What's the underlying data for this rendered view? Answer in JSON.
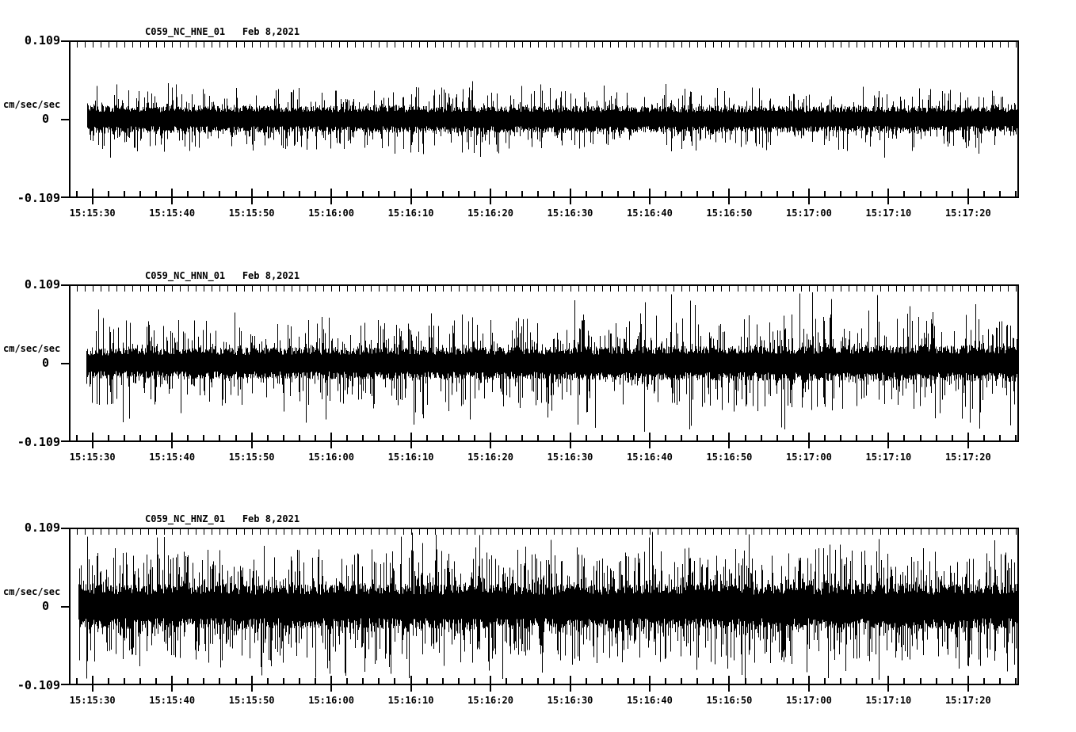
{
  "page": {
    "background": "#ffffff",
    "foreground": "#000000"
  },
  "chart_data": {
    "type": "line",
    "subtype": "seismogram min/max envelope traces, 3 stacked panels",
    "grid": false,
    "legend": false,
    "trace_color": "#000000",
    "x_axis": {
      "approx_start_time": "15:15:27",
      "approx_end_time": "15:17:26",
      "major_tick_interval_sec": 10,
      "minor_tick_interval_sec": 2,
      "top_edge_tick_interval_sec": 1,
      "major_tick_labels": [
        "15:15:30",
        "15:15:40",
        "15:15:50",
        "15:16:00",
        "15:16:10",
        "15:16:20",
        "15:16:30",
        "15:16:40",
        "15:16:50",
        "15:17:00",
        "15:17:10",
        "15:17:20"
      ]
    },
    "panels": [
      {
        "title": "C059_NC_HNE_01   Feb 8,2021",
        "station": "C059",
        "network": "NC",
        "channel": "HNE",
        "location": "01",
        "date": "Feb 8,2021",
        "ylabel": "cm/sec/sec",
        "ylim": [
          -0.109,
          0.109
        ],
        "yticks": [
          0.109,
          0,
          -0.109
        ],
        "ytick_labels": [
          "0.109",
          "0",
          "-0.109"
        ],
        "noise_envelope_cm_s2": {
          "dense_band": 0.018,
          "frequent_spikes": 0.031,
          "max_spike": 0.056
        },
        "spike_density": 0.45,
        "big_spike_density": 0.01,
        "spike_shape": 2.5,
        "amp_trend": [
          1.02,
          0.96
        ],
        "seed": 11
      },
      {
        "title": "C059_NC_HNN_01   Feb 8,2021",
        "station": "C059",
        "network": "NC",
        "channel": "HNN",
        "location": "01",
        "date": "Feb 8,2021",
        "ylabel": "cm/sec/sec",
        "ylim": [
          -0.109,
          0.109
        ],
        "yticks": [
          0.109,
          0,
          -0.109
        ],
        "ytick_labels": [
          "0.109",
          "0",
          "-0.109"
        ],
        "noise_envelope_cm_s2": {
          "dense_band": 0.021,
          "frequent_spikes": 0.047,
          "max_spike": 0.089
        },
        "spike_density": 0.45,
        "big_spike_density": 0.014,
        "spike_shape": 2.2,
        "amp_trend": [
          0.96,
          1.18
        ],
        "seed": 22
      },
      {
        "title": "C059_NC_HNZ_01   Feb 8,2021",
        "station": "C059",
        "network": "NC",
        "channel": "HNZ",
        "location": "01",
        "date": "Feb 8,2021",
        "ylabel": "cm/sec/sec",
        "ylim": [
          -0.109,
          0.109
        ],
        "yticks": [
          0.109,
          0,
          -0.109
        ],
        "ytick_labels": [
          "0.109",
          "0",
          "-0.109"
        ],
        "noise_envelope_cm_s2": {
          "dense_band": 0.03,
          "frequent_spikes": 0.056,
          "max_spike": 0.104
        },
        "spike_density": 0.58,
        "big_spike_density": 0.022,
        "spike_shape": 1.8,
        "amp_trend": [
          1.0,
          1.02
        ],
        "seed": 33
      }
    ]
  }
}
